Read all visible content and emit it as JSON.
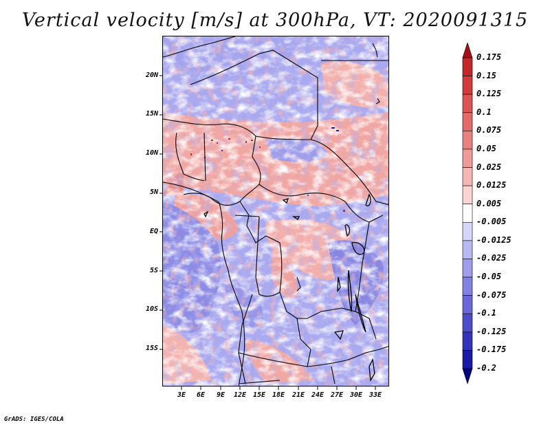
{
  "title": "Vertical velocity [m/s] at 300hPa, VT: 2020091315",
  "footer": "GrADS: IGES/COLA",
  "map": {
    "region": "Central Africa",
    "lat_labels": [
      "20N",
      "15N",
      "10N",
      "5N",
      "EQ",
      "5S",
      "10S",
      "15S"
    ],
    "lon_labels": [
      "3E",
      "6E",
      "9E",
      "12E",
      "15E",
      "18E",
      "21E",
      "24E",
      "27E",
      "30E",
      "33E"
    ]
  },
  "colorbar": {
    "labels": [
      "0.175",
      "0.15",
      "0.125",
      "0.1",
      "0.075",
      "0.05",
      "0.025",
      "0.0125",
      "0.005",
      "-0.005",
      "-0.0125",
      "-0.025",
      "-0.05",
      "-0.075",
      "-0.1",
      "-0.125",
      "-0.175",
      "-0.2"
    ],
    "colors": [
      "#a50f15",
      "#c4262a",
      "#d23b3b",
      "#dd5252",
      "#e36a68",
      "#e98180",
      "#ef9b98",
      "#f5b7b4",
      "#fad4d1",
      "#ffffff",
      "#d6d6f8",
      "#b8b8f2",
      "#9d9dec",
      "#8282e3",
      "#6868d8",
      "#4d4dcb",
      "#3333bb",
      "#1919a5",
      "#000080"
    ]
  }
}
